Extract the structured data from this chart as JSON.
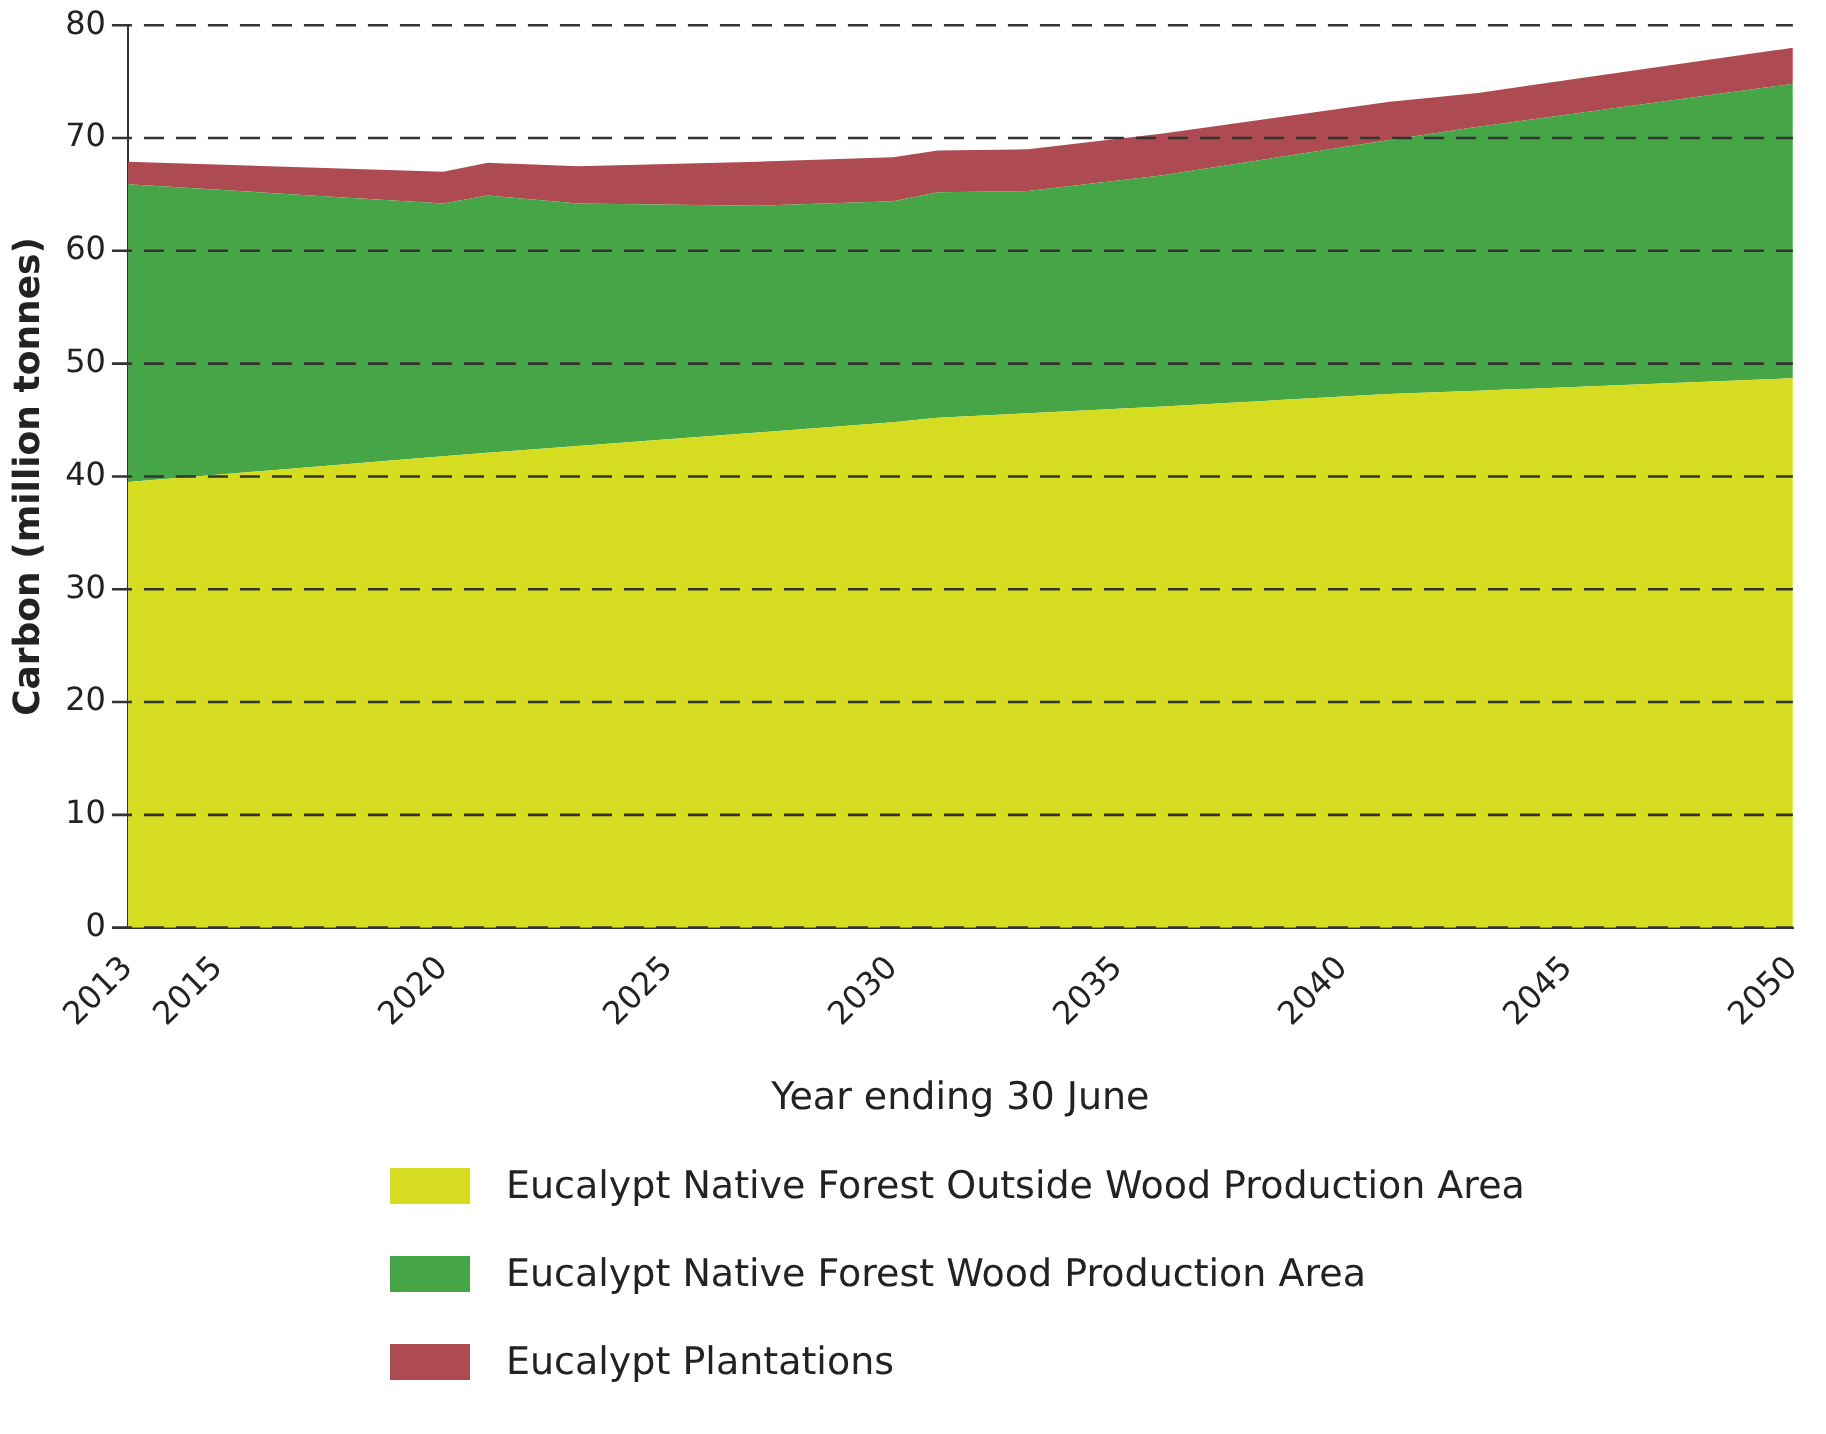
{
  "chart_data": {
    "type": "area",
    "stacked": true,
    "xlabel": "Year ending 30 June",
    "ylabel": "Carbon (million tonnes)",
    "x": [
      2013,
      2020,
      2021,
      2023,
      2027,
      2030,
      2031,
      2033,
      2036,
      2041,
      2043,
      2050
    ],
    "series": [
      {
        "name": "Eucalypt Native Forest Outside Wood Production Area",
        "color": "#d6dd21",
        "values": [
          39.5,
          41.8,
          42.1,
          42.7,
          43.9,
          44.8,
          45.2,
          45.6,
          46.2,
          47.3,
          47.6,
          48.7
        ]
      },
      {
        "name": "Eucalypt Native Forest Wood Production Area",
        "color": "#46a546",
        "values": [
          26.4,
          22.4,
          22.8,
          21.5,
          20.1,
          19.6,
          20.0,
          19.7,
          20.5,
          22.5,
          23.4,
          26.1
        ]
      },
      {
        "name": "Eucalypt Plantations",
        "color": "#ae4b52",
        "values": [
          2.0,
          2.8,
          2.9,
          3.3,
          3.9,
          3.9,
          3.7,
          3.7,
          3.7,
          3.4,
          3.0,
          3.2
        ]
      }
    ],
    "xlim": [
      2013,
      2050
    ],
    "xticks": [
      2013,
      2015,
      2020,
      2025,
      2030,
      2035,
      2040,
      2045,
      2050
    ],
    "ylim": [
      0,
      80
    ],
    "yticks": [
      0,
      10,
      20,
      30,
      40,
      50,
      60,
      70,
      80
    ],
    "grid": "y",
    "line_style": "dashed",
    "legend": "bottom"
  }
}
